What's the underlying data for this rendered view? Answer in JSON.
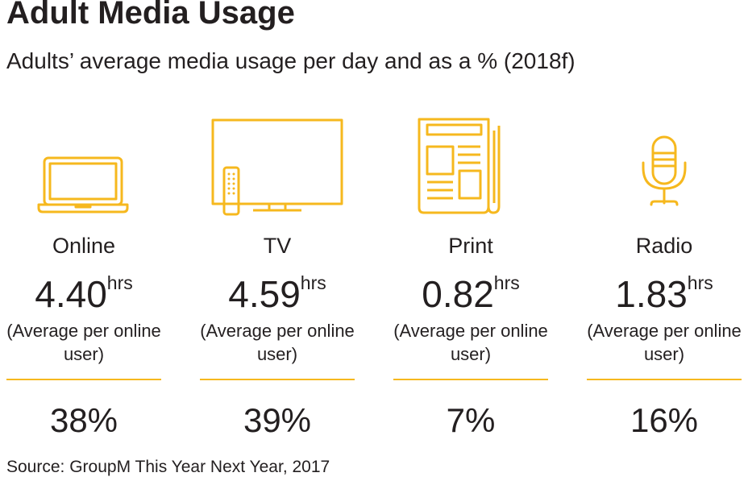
{
  "title": "Adult Media Usage",
  "subtitle": "Adults’ average media usage per day and as a % (2018f)",
  "source": "Source: GroupM This Year Next Year, 2017",
  "colors": {
    "accent": "#f6b81e",
    "text": "#231f20"
  },
  "chart_data": {
    "type": "table",
    "title": "Adult Media Usage",
    "subtitle": "Adults’ average media usage per day and as a % (2018f)",
    "categories": [
      "Online",
      "TV",
      "Print",
      "Radio"
    ],
    "series": [
      {
        "name": "hrs",
        "values": [
          4.4,
          4.59,
          0.82,
          1.83
        ]
      },
      {
        "name": "%",
        "values": [
          38,
          39,
          7,
          16
        ]
      }
    ],
    "items": [
      {
        "label": "Online",
        "icon": "laptop-icon",
        "value": "4.40",
        "unit": "hrs",
        "note": "(Average per online user)",
        "pct": "38%"
      },
      {
        "label": "TV",
        "icon": "television-icon",
        "value": "4.59",
        "unit": "hrs",
        "note": "(Average per online user)",
        "pct": "39%"
      },
      {
        "label": "Print",
        "icon": "newspaper-icon",
        "value": "0.82",
        "unit": "hrs",
        "note": "(Average per online user)",
        "pct": "7%"
      },
      {
        "label": "Radio",
        "icon": "microphone-icon",
        "value": "1.83",
        "unit": "hrs",
        "note": "(Average per online user)",
        "pct": "16%"
      }
    ]
  }
}
